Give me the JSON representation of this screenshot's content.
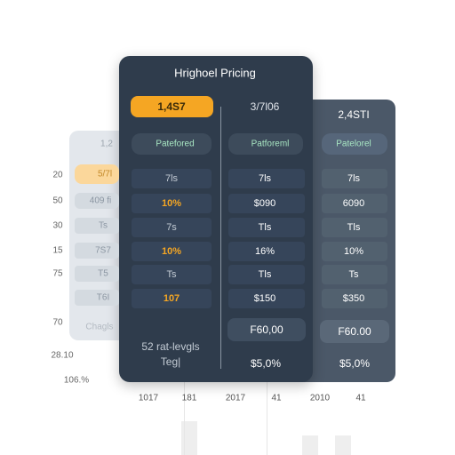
{
  "background": {
    "y_labels": [
      "20",
      "50",
      "30",
      "15",
      "75",
      "70"
    ],
    "side_labels": [
      "28.10",
      "106.%"
    ],
    "x_labels": [
      "1017",
      "181",
      "2017",
      "41",
      "2010",
      "41"
    ]
  },
  "left_card": {
    "header": "1,2",
    "price": "5/7l",
    "badge": "409 fi",
    "rows": [
      "Ts",
      "7S7",
      "T5",
      "T6I"
    ],
    "footer": "Chagls"
  },
  "main_card": {
    "title": "Hrighoel Pricing",
    "columns": [
      {
        "price": "1,4S7",
        "badge": "Patefored",
        "rows": [
          "7ls",
          "10%",
          "7s",
          "10%",
          "Ts",
          "107"
        ],
        "footer": [
          "52 rat-levgls",
          "Teg|"
        ]
      },
      {
        "price": "3/7l06",
        "badge": "Patforeml",
        "rows": [
          "7ls",
          "$090",
          "Tls",
          "16%",
          "Tls",
          "$150"
        ],
        "button": "F60,00",
        "footer": "$5,0%"
      }
    ]
  },
  "right_card": {
    "price": "2,4STI",
    "badge": "Patelorel",
    "rows": [
      "7ls",
      "6090",
      "Tls",
      "10%",
      "Ts",
      "$350"
    ],
    "button": "F60.00",
    "footer": "$5,0%"
  }
}
